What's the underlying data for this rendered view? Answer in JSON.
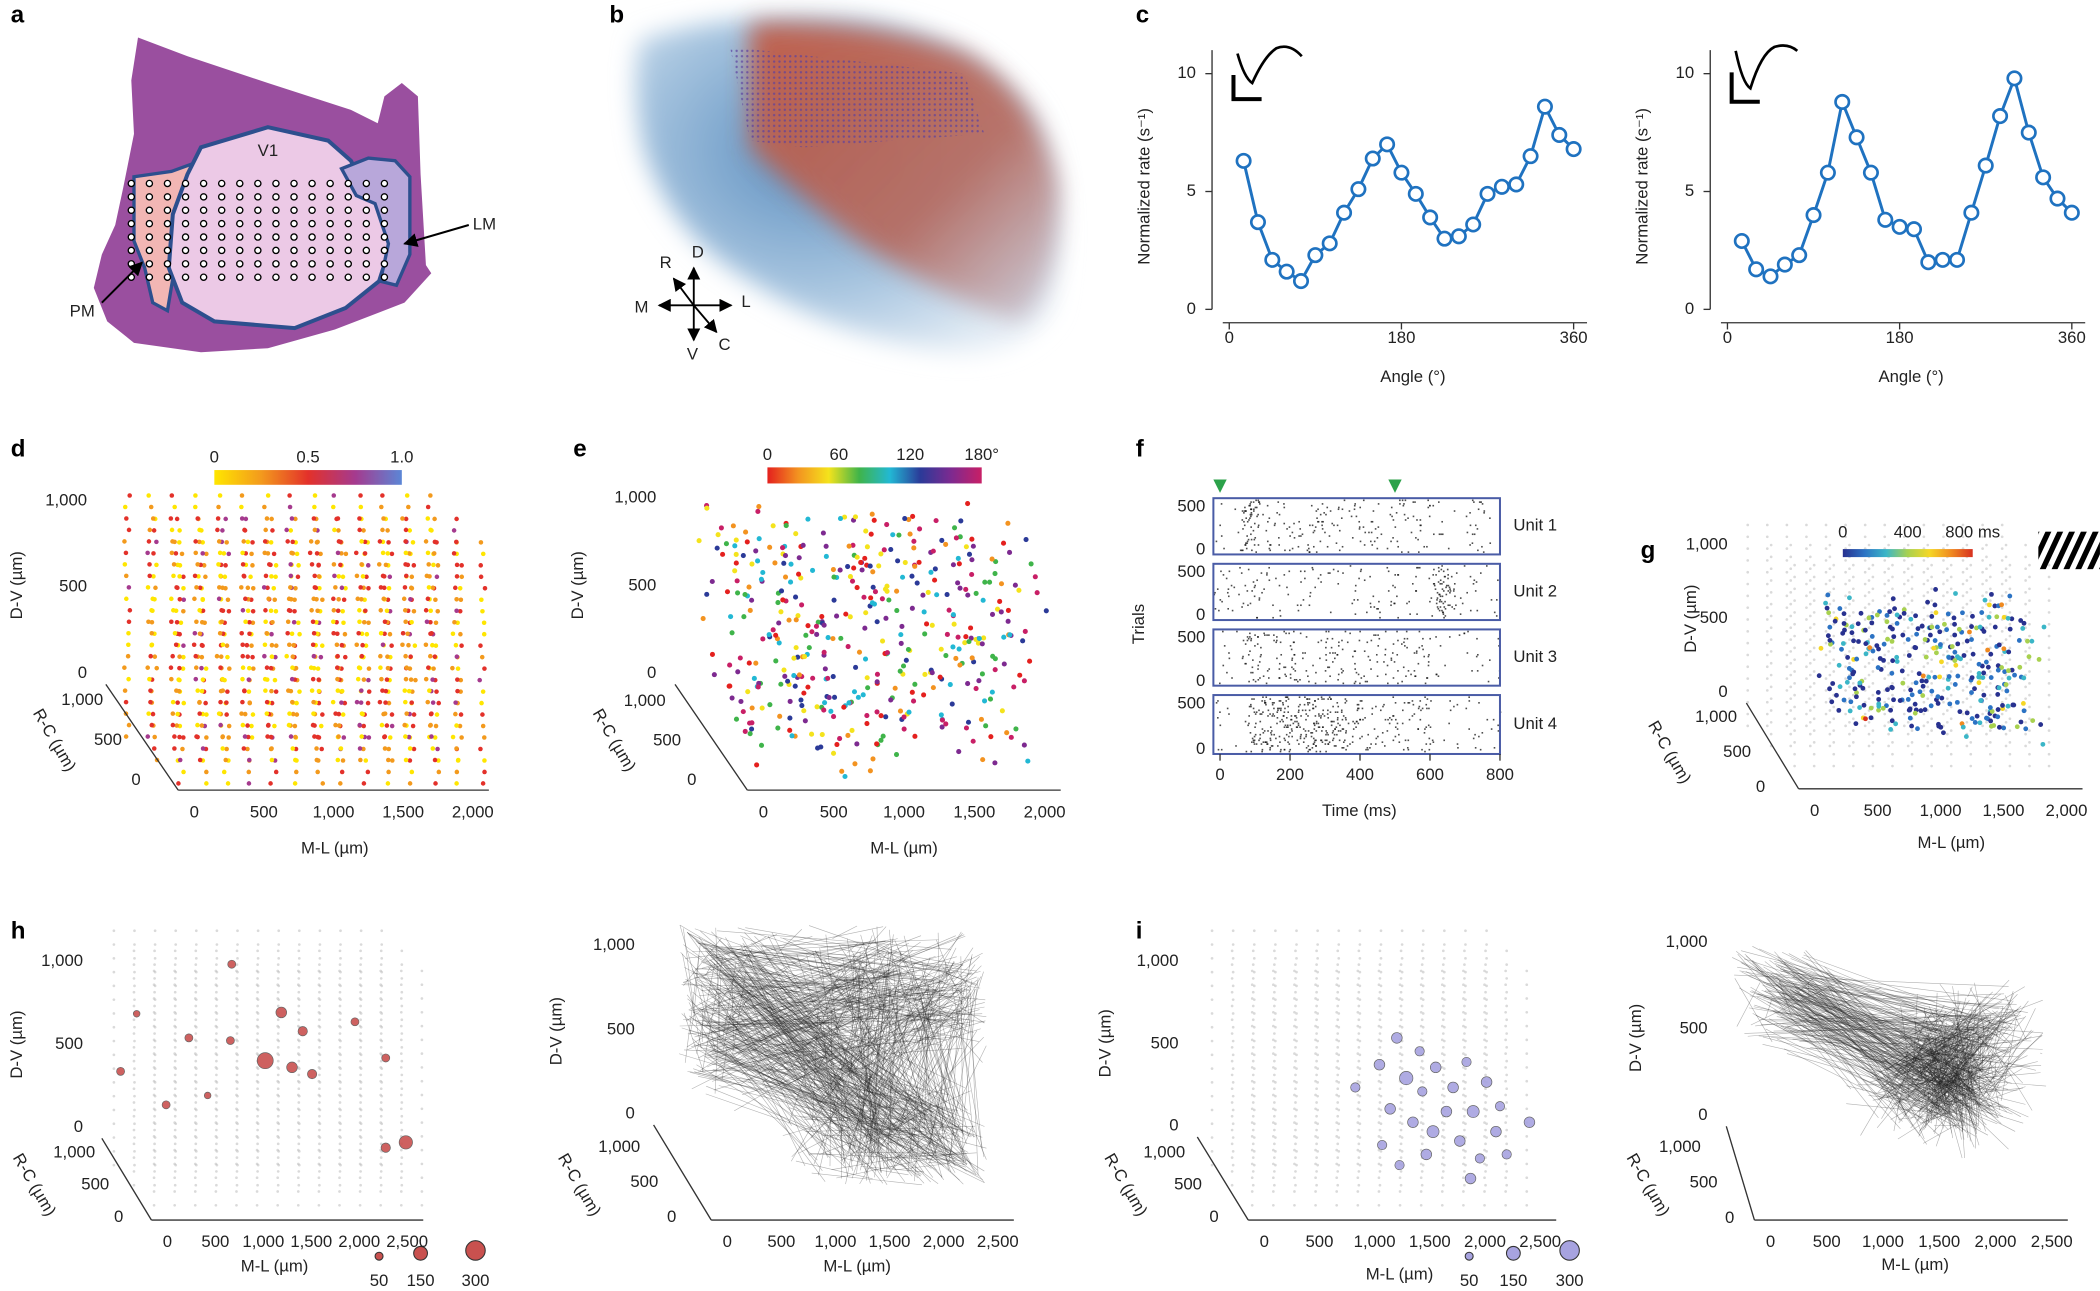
{
  "panel_labels": [
    "a",
    "b",
    "c",
    "d",
    "e",
    "f",
    "g",
    "h",
    "i"
  ],
  "a": {
    "area_labels": [
      "V1",
      "LM",
      "PM"
    ]
  },
  "b": {
    "axis_letters": [
      "R",
      "D",
      "M",
      "L",
      "V",
      "C"
    ]
  },
  "chart_data": [
    {
      "type": "line",
      "xlabel": "Angle (°)",
      "ylabel": "Normalized rate (s⁻¹)",
      "x": [
        15,
        30,
        45,
        60,
        75,
        90,
        105,
        120,
        135,
        150,
        165,
        180,
        195,
        210,
        225,
        240,
        255,
        270,
        285,
        300,
        315,
        330,
        345,
        360
      ],
      "values": [
        6.3,
        3.7,
        2.1,
        1.6,
        1.2,
        2.3,
        2.8,
        4.1,
        5.1,
        6.4,
        7.0,
        5.8,
        4.9,
        3.9,
        3.0,
        3.1,
        3.6,
        4.9,
        5.2,
        5.3,
        6.5,
        8.6,
        7.4,
        6.8
      ],
      "color": "#1f72c0",
      "xlim": [
        -18,
        374
      ],
      "ylim": [
        0,
        11
      ],
      "xticks": [
        0,
        180,
        360
      ],
      "yticks": [
        0,
        5,
        10
      ]
    },
    {
      "type": "line",
      "xlabel": "Angle (°)",
      "ylabel": "Normalized rate (s⁻¹)",
      "x": [
        15,
        30,
        45,
        60,
        75,
        90,
        105,
        120,
        135,
        150,
        165,
        180,
        195,
        210,
        225,
        240,
        255,
        270,
        285,
        300,
        315,
        330,
        345,
        360
      ],
      "values": [
        2.9,
        1.7,
        1.4,
        1.9,
        2.3,
        4.0,
        5.8,
        8.8,
        7.3,
        5.8,
        3.8,
        3.5,
        3.4,
        2.0,
        2.1,
        2.1,
        4.1,
        6.1,
        8.2,
        9.8,
        7.5,
        5.6,
        4.7,
        4.1
      ],
      "color": "#1f72c0",
      "xlim": [
        -18,
        374
      ],
      "ylim": [
        0,
        11
      ],
      "xticks": [
        0,
        180,
        360
      ],
      "yticks": [
        0,
        5,
        10
      ]
    },
    {
      "type": "scatter3d",
      "xlabel": "M-L (µm)",
      "ylabel": "D-V (µm)",
      "zlabel": "R-C (µm)",
      "xlim": [
        0,
        2000
      ],
      "ylim": [
        0,
        1000
      ],
      "zlim": [
        0,
        1000
      ],
      "xticks": [
        0,
        500,
        {
          "value": 1000,
          "label": "1,000"
        },
        {
          "value": 1500,
          "label": "1,500"
        },
        {
          "value": 2000,
          "label": "2,000"
        }
      ],
      "yticks": [
        0,
        500,
        {
          "value": 1000,
          "label": "1,000"
        }
      ],
      "zticks": [
        0,
        500,
        {
          "value": 1000,
          "label": "1,000"
        }
      ],
      "colorbar": {
        "colors": [
          "#ffe600",
          "#f39a1d",
          "#e3312a",
          "#a53a8e",
          "#5b86d6"
        ],
        "lim": [
          0,
          1
        ],
        "ticks": [
          0,
          0.5,
          {
            "value": 1,
            "label": "1.0"
          }
        ]
      }
    },
    {
      "type": "scatter3d",
      "xlabel": "M-L (µm)",
      "ylabel": "D-V (µm)",
      "zlabel": "R-C (µm)",
      "xlim": [
        0,
        2000
      ],
      "ylim": [
        0,
        1000
      ],
      "zlim": [
        0,
        1000
      ],
      "xticks": [
        0,
        500,
        {
          "value": 1000,
          "label": "1,000"
        },
        {
          "value": 1500,
          "label": "1,500"
        },
        {
          "value": 2000,
          "label": "2,000"
        }
      ],
      "yticks": [
        0,
        500,
        {
          "value": 1000,
          "label": "1,000"
        }
      ],
      "zticks": [
        0,
        500,
        {
          "value": 1000,
          "label": "1,000"
        }
      ],
      "colorbar": {
        "colors": [
          "#e4201e",
          "#f39320",
          "#f4e31c",
          "#3fb44a",
          "#22b8d4",
          "#2b3a98",
          "#7d2a90",
          "#c81f66"
        ],
        "lim": [
          0,
          180
        ],
        "ticks": [
          0,
          60,
          120,
          {
            "value": 180,
            "label": "180°"
          }
        ]
      }
    },
    {
      "type": "raster",
      "xlabel": "Time (ms)",
      "ylabel": "Trials",
      "xlim": [
        -19,
        800
      ],
      "xticks": [
        0,
        200,
        400,
        600,
        800
      ],
      "stimulus_onsets": [
        0,
        500
      ],
      "marker_color": "#2ca24a",
      "frame_color": "#4a5ca6",
      "units": [
        {
          "name": "Unit 1",
          "ylim": [
            -50,
            600
          ],
          "yticks": [
            0,
            500
          ]
        },
        {
          "name": "Unit 2",
          "ylim": [
            -50,
            600
          ],
          "yticks": [
            0,
            500
          ]
        },
        {
          "name": "Unit 3",
          "ylim": [
            -50,
            600
          ],
          "yticks": [
            0,
            500
          ]
        },
        {
          "name": "Unit 4",
          "ylim": [
            -50,
            600
          ],
          "yticks": [
            0,
            500
          ]
        }
      ]
    },
    {
      "type": "scatter3d",
      "xlabel": "M-L (µm)",
      "ylabel": "D-V (µm)",
      "zlabel": "R-C (µm)",
      "xlim": [
        0,
        2000
      ],
      "ylim": [
        0,
        1000
      ],
      "zlim": [
        0,
        1000
      ],
      "xticks": [
        0,
        500,
        {
          "value": 1000,
          "label": "1,000"
        },
        {
          "value": 1500,
          "label": "1,500"
        },
        {
          "value": 2000,
          "label": "2,000"
        }
      ],
      "yticks": [
        0,
        500,
        {
          "value": 1000,
          "label": "1,000"
        }
      ],
      "zticks": [
        0,
        500,
        {
          "value": 1000,
          "label": "1,000"
        }
      ],
      "colorbar": {
        "colors": [
          "#28318f",
          "#2c73c4",
          "#3bb6c7",
          "#a8d14f",
          "#f5d726",
          "#f08a20",
          "#d7301f"
        ],
        "lim": [
          0,
          800
        ],
        "ticks": [
          0,
          400,
          {
            "value": 800,
            "label": "800 ms"
          }
        ]
      }
    },
    {
      "type": "scatter3d",
      "xlabel": "M-L (µm)",
      "ylabel": "D-V (µm)",
      "zlabel": "R-C (µm)",
      "xlim": [
        0,
        2500
      ],
      "ylim": [
        0,
        1000
      ],
      "zlim": [
        0,
        1000
      ],
      "xticks": [
        0,
        500,
        {
          "value": 1000,
          "label": "1,000"
        },
        {
          "value": 1500,
          "label": "1,500"
        },
        {
          "value": 2000,
          "label": "2,000"
        },
        {
          "value": 2500,
          "label": "2,500"
        }
      ],
      "yticks": [
        0,
        500,
        {
          "value": 1000,
          "label": "1,000"
        }
      ],
      "zticks": [
        0,
        500,
        {
          "value": 1000,
          "label": "1,000"
        }
      ],
      "size_legend": {
        "values": [
          50,
          150,
          300
        ],
        "color": "#c9514f"
      }
    },
    {
      "type": "scatter3d",
      "xlabel": "M-L (µm)",
      "ylabel": "D-V (µm)",
      "zlabel": "R-C (µm)",
      "xlim": [
        0,
        2500
      ],
      "ylim": [
        0,
        1000
      ],
      "zlim": [
        0,
        1000
      ],
      "xticks": [
        0,
        500,
        {
          "value": 1000,
          "label": "1,000"
        },
        {
          "value": 1500,
          "label": "1,500"
        },
        {
          "value": 2000,
          "label": "2,000"
        },
        {
          "value": 2500,
          "label": "2,500"
        }
      ],
      "yticks": [
        0,
        500,
        {
          "value": 1000,
          "label": "1,000"
        }
      ],
      "zticks": [
        0,
        500,
        {
          "value": 1000,
          "label": "1,000"
        }
      ]
    },
    {
      "type": "scatter3d",
      "xlabel": "M-L (µm)",
      "ylabel": "D-V (µm)",
      "zlabel": "R-C (µm)",
      "xlim": [
        0,
        2500
      ],
      "ylim": [
        0,
        1000
      ],
      "zlim": [
        0,
        1000
      ],
      "xticks": [
        0,
        500,
        {
          "value": 1000,
          "label": "1,000"
        },
        {
          "value": 1500,
          "label": "1,500"
        },
        {
          "value": 2000,
          "label": "2,000"
        },
        {
          "value": 2500,
          "label": "2,500"
        }
      ],
      "yticks": [
        0,
        500,
        {
          "value": 1000,
          "label": "1,000"
        }
      ],
      "zticks": [
        0,
        500,
        {
          "value": 1000,
          "label": "1,000"
        }
      ],
      "size_legend": {
        "values": [
          50,
          150,
          300
        ],
        "color": "#a7a3e0"
      }
    },
    {
      "type": "scatter3d",
      "xlabel": "M-L (µm)",
      "ylabel": "D-V (µm)",
      "zlabel": "R-C (µm)",
      "xlim": [
        0,
        2500
      ],
      "ylim": [
        0,
        1000
      ],
      "zlim": [
        0,
        1000
      ],
      "xticks": [
        0,
        500,
        {
          "value": 1000,
          "label": "1,000"
        },
        {
          "value": 1500,
          "label": "1,500"
        },
        {
          "value": 2000,
          "label": "2,000"
        },
        {
          "value": 2500,
          "label": "2,500"
        }
      ],
      "yticks": [
        0,
        500,
        {
          "value": 1000,
          "label": "1,000"
        }
      ],
      "zticks": [
        0,
        500,
        {
          "value": 1000,
          "label": "1,000"
        }
      ]
    }
  ]
}
